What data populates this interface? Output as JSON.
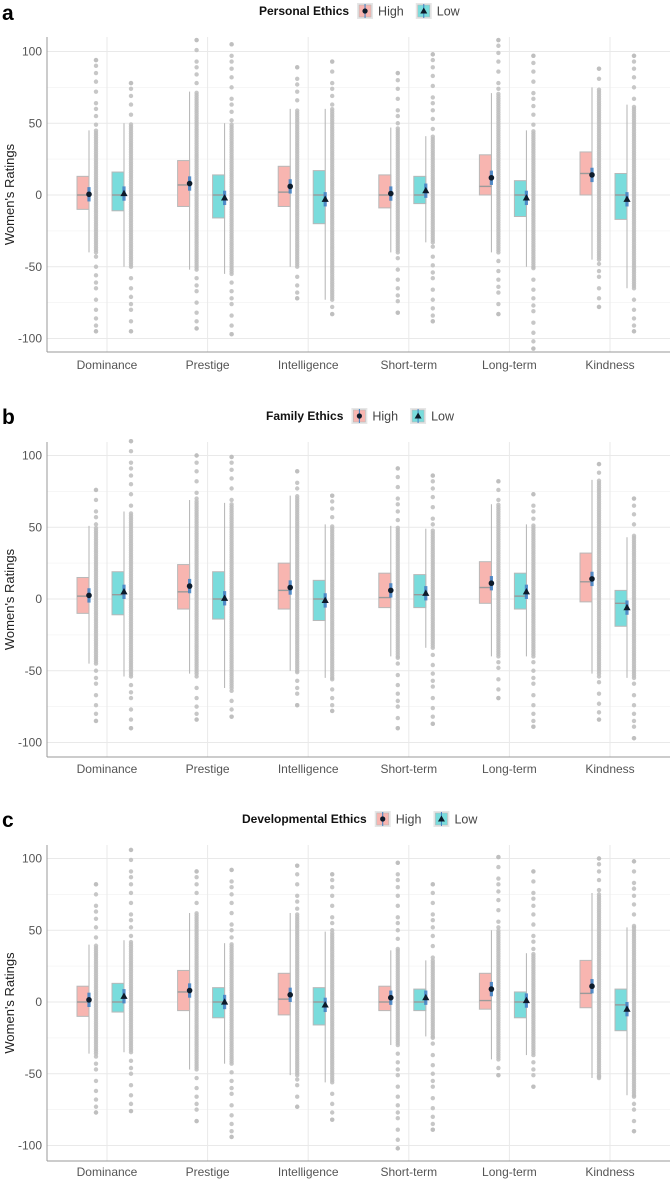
{
  "chart_data": [
    {
      "type": "box",
      "panel_label": "a",
      "legend_title": "Personal Ethics",
      "legend": [
        "High",
        "Low"
      ],
      "ylabel": "Women's Ratings",
      "xlabel": "",
      "ylim": [
        -110,
        110
      ],
      "yticks": [
        -100,
        -50,
        0,
        50,
        100
      ],
      "categories": [
        "Dominance",
        "Prestige",
        "Intelligence",
        "Short-term",
        "Long-term",
        "Kindness"
      ],
      "series": [
        {
          "name": "High",
          "groups": [
            {
              "q1": -10,
              "median": 0,
              "q3": 13,
              "whisker": [
                -40,
                45
              ],
              "mean": 0.5,
              "ci": 5,
              "point_range": [
                -95,
                94
              ]
            },
            {
              "q1": -8,
              "median": 7,
              "q3": 24,
              "whisker": [
                -52,
                72
              ],
              "mean": 8,
              "ci": 5,
              "point_range": [
                -93,
                108
              ]
            },
            {
              "q1": -8,
              "median": 2,
              "q3": 20,
              "whisker": [
                -50,
                60
              ],
              "mean": 6,
              "ci": 5,
              "point_range": [
                -72,
                89
              ]
            },
            {
              "q1": -9,
              "median": 0,
              "q3": 14,
              "whisker": [
                -40,
                47
              ],
              "mean": 1,
              "ci": 5,
              "point_range": [
                -82,
                85
              ]
            },
            {
              "q1": 0,
              "median": 6,
              "q3": 28,
              "whisker": [
                -40,
                71
              ],
              "mean": 12,
              "ci": 5,
              "point_range": [
                -83,
                108
              ]
            },
            {
              "q1": 0,
              "median": 15,
              "q3": 30,
              "whisker": [
                -45,
                75
              ],
              "mean": 14,
              "ci": 5,
              "point_range": [
                -78,
                88
              ]
            }
          ]
        },
        {
          "name": "Low",
          "groups": [
            {
              "q1": -11,
              "median": 0,
              "q3": 16,
              "whisker": [
                -50,
                50
              ],
              "mean": 1,
              "ci": 5,
              "point_range": [
                -95,
                78
              ]
            },
            {
              "q1": -16,
              "median": 0,
              "q3": 14,
              "whisker": [
                -55,
                50
              ],
              "mean": -2,
              "ci": 5,
              "point_range": [
                -97,
                105
              ]
            },
            {
              "q1": -20,
              "median": 0,
              "q3": 17,
              "whisker": [
                -73,
                60
              ],
              "mean": -3,
              "ci": 5,
              "point_range": [
                -83,
                93
              ]
            },
            {
              "q1": -6,
              "median": 0,
              "q3": 13,
              "whisker": [
                -33,
                41
              ],
              "mean": 3,
              "ci": 5,
              "point_range": [
                -88,
                98
              ]
            },
            {
              "q1": -15,
              "median": 0,
              "q3": 10,
              "whisker": [
                -50,
                45
              ],
              "mean": -2,
              "ci": 5,
              "point_range": [
                -107,
                97
              ]
            },
            {
              "q1": -17,
              "median": 0,
              "q3": 15,
              "whisker": [
                -65,
                63
              ],
              "mean": -3,
              "ci": 5,
              "point_range": [
                -95,
                97
              ]
            }
          ]
        }
      ]
    },
    {
      "type": "box",
      "panel_label": "b",
      "legend_title": "Family Ethics",
      "legend": [
        "High",
        "Low"
      ],
      "ylabel": "Women's Ratings",
      "xlabel": "",
      "ylim": [
        -110,
        110
      ],
      "yticks": [
        -100,
        -50,
        0,
        50,
        100
      ],
      "categories": [
        "Dominance",
        "Prestige",
        "Intelligence",
        "Short-term",
        "Long-term",
        "Kindness"
      ],
      "series": [
        {
          "name": "High",
          "groups": [
            {
              "q1": -10,
              "median": 2,
              "q3": 15,
              "whisker": [
                -45,
                51
              ],
              "mean": 2.5,
              "ci": 5,
              "point_range": [
                -85,
                76
              ]
            },
            {
              "q1": -7,
              "median": 5,
              "q3": 24,
              "whisker": [
                -52,
                69
              ],
              "mean": 9,
              "ci": 5,
              "point_range": [
                -84,
                100
              ]
            },
            {
              "q1": -7,
              "median": 6,
              "q3": 25,
              "whisker": [
                -50,
                72
              ],
              "mean": 8,
              "ci": 5,
              "point_range": [
                -74,
                89
              ]
            },
            {
              "q1": -6,
              "median": 1,
              "q3": 18,
              "whisker": [
                -40,
                51
              ],
              "mean": 6,
              "ci": 5,
              "point_range": [
                -90,
                91
              ]
            },
            {
              "q1": -3,
              "median": 8,
              "q3": 26,
              "whisker": [
                -40,
                66
              ],
              "mean": 11,
              "ci": 5,
              "point_range": [
                -69,
                82
              ]
            },
            {
              "q1": -2,
              "median": 12,
              "q3": 32,
              "whisker": [
                -52,
                83
              ],
              "mean": 14,
              "ci": 5,
              "point_range": [
                -84,
                94
              ]
            }
          ]
        },
        {
          "name": "Low",
          "groups": [
            {
              "q1": -11,
              "median": 3,
              "q3": 19,
              "whisker": [
                -54,
                61
              ],
              "mean": 5,
              "ci": 5,
              "point_range": [
                -90,
                110
              ]
            },
            {
              "q1": -14,
              "median": 0,
              "q3": 19,
              "whisker": [
                -62,
                67
              ],
              "mean": 0.5,
              "ci": 5,
              "point_range": [
                -82,
                99
              ]
            },
            {
              "q1": -15,
              "median": 0,
              "q3": 13,
              "whisker": [
                -55,
                52
              ],
              "mean": -1,
              "ci": 5,
              "point_range": [
                -78,
                72
              ]
            },
            {
              "q1": -6,
              "median": 3,
              "q3": 17,
              "whisker": [
                -34,
                49
              ],
              "mean": 4,
              "ci": 5,
              "point_range": [
                -87,
                86
              ]
            },
            {
              "q1": -7,
              "median": 2,
              "q3": 18,
              "whisker": [
                -40,
                52
              ],
              "mean": 5,
              "ci": 5,
              "point_range": [
                -89,
                73
              ]
            },
            {
              "q1": -19,
              "median": -3,
              "q3": 6,
              "whisker": [
                -55,
                43
              ],
              "mean": -6,
              "ci": 5,
              "point_range": [
                -97,
                70
              ]
            }
          ]
        }
      ]
    },
    {
      "type": "box",
      "panel_label": "c",
      "legend_title": "Developmental Ethics",
      "legend": [
        "High",
        "Low"
      ],
      "ylabel": "Women's Ratings",
      "xlabel": "",
      "ylim": [
        -110,
        110
      ],
      "yticks": [
        -100,
        -50,
        0,
        50,
        100
      ],
      "categories": [
        "Dominance",
        "Prestige",
        "Intelligence",
        "Short-term",
        "Long-term",
        "Kindness"
      ],
      "series": [
        {
          "name": "High",
          "groups": [
            {
              "q1": -10,
              "median": 0,
              "q3": 11,
              "whisker": [
                -36,
                40
              ],
              "mean": 1.5,
              "ci": 5,
              "point_range": [
                -77,
                82
              ]
            },
            {
              "q1": -6,
              "median": 7,
              "q3": 22,
              "whisker": [
                -47,
                62
              ],
              "mean": 8,
              "ci": 5,
              "point_range": [
                -83,
                91
              ]
            },
            {
              "q1": -9,
              "median": 2,
              "q3": 20,
              "whisker": [
                -51,
                62
              ],
              "mean": 5,
              "ci": 5,
              "point_range": [
                -73,
                95
              ]
            },
            {
              "q1": -6,
              "median": 0,
              "q3": 11,
              "whisker": [
                -30,
                36
              ],
              "mean": 3,
              "ci": 5,
              "point_range": [
                -102,
                97
              ]
            },
            {
              "q1": -5,
              "median": 1,
              "q3": 20,
              "whisker": [
                -40,
                50
              ],
              "mean": 9,
              "ci": 5,
              "point_range": [
                -51,
                101
              ]
            },
            {
              "q1": -4,
              "median": 6,
              "q3": 29,
              "whisker": [
                -53,
                76
              ],
              "mean": 11,
              "ci": 5,
              "point_range": [
                -52,
                100
              ]
            }
          ]
        },
        {
          "name": "Low",
          "groups": [
            {
              "q1": -7,
              "median": 0,
              "q3": 13,
              "whisker": [
                -35,
                43
              ],
              "mean": 4,
              "ci": 5,
              "point_range": [
                -76,
                106
              ]
            },
            {
              "q1": -11,
              "median": 0,
              "q3": 10,
              "whisker": [
                -43,
                41
              ],
              "mean": 0,
              "ci": 5,
              "point_range": [
                -94,
                92
              ]
            },
            {
              "q1": -16,
              "median": 0,
              "q3": 10,
              "whisker": [
                -56,
                49
              ],
              "mean": -2,
              "ci": 5,
              "point_range": [
                -82,
                89
              ]
            },
            {
              "q1": -6,
              "median": 0,
              "q3": 9,
              "whisker": [
                -24,
                29
              ],
              "mean": 3,
              "ci": 5,
              "point_range": [
                -89,
                82
              ]
            },
            {
              "q1": -11,
              "median": 0,
              "q3": 7,
              "whisker": [
                -37,
                34
              ],
              "mean": 1,
              "ci": 5,
              "point_range": [
                -59,
                91
              ]
            },
            {
              "q1": -20,
              "median": -2,
              "q3": 9,
              "whisker": [
                -65,
                52
              ],
              "mean": -5,
              "ci": 5,
              "point_range": [
                -90,
                98
              ]
            }
          ]
        }
      ]
    }
  ],
  "colors": {
    "high_fill": "#f8b5b0",
    "low_fill": "#79dcdc",
    "box_stroke": "#b8b8b8",
    "median": "#9a9a9a",
    "points": "#bdbdbd",
    "ci": "#3d7fc4",
    "mean_marker": "#0d1b2a",
    "grid_major": "#e9e9e9",
    "grid_minor": "#f4f4f4",
    "axis": "#999999"
  }
}
